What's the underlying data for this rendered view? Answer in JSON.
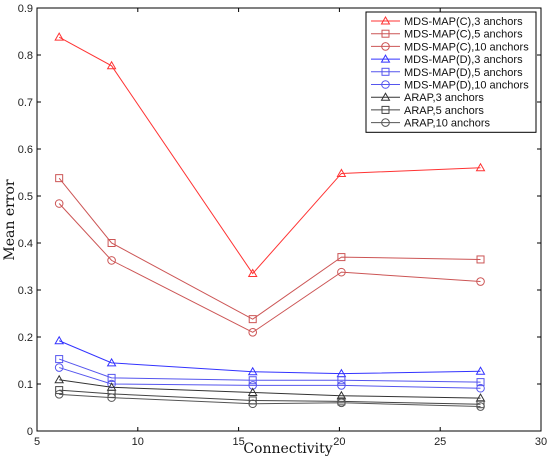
{
  "chart_data": {
    "type": "line",
    "title": "",
    "xlabel": "Connectivity",
    "ylabel": "Mean error",
    "xlim": [
      5,
      30
    ],
    "ylim": [
      0,
      0.9
    ],
    "xticks": [
      5,
      10,
      15,
      20,
      25,
      30
    ],
    "yticks": [
      0,
      0.1,
      0.2,
      0.3,
      0.4,
      0.5,
      0.6,
      0.7,
      0.8,
      0.9
    ],
    "grid": false,
    "legend_position": "top-right",
    "x": [
      6.1,
      8.7,
      15.7,
      20.1,
      27.0
    ],
    "series": [
      {
        "name": "MDS-MAP(C),3 anchors",
        "color": "#ff3333",
        "marker": "triangle",
        "values": [
          0.838,
          0.777,
          0.335,
          0.548,
          0.56
        ]
      },
      {
        "name": "MDS-MAP(C),5 anchors",
        "color": "#cc5555",
        "marker": "square",
        "values": [
          0.538,
          0.4,
          0.238,
          0.37,
          0.365
        ]
      },
      {
        "name": "MDS-MAP(C),10 anchors",
        "color": "#cc5555",
        "marker": "circle",
        "values": [
          0.484,
          0.363,
          0.21,
          0.338,
          0.318
        ]
      },
      {
        "name": "MDS-MAP(D),3 anchors",
        "color": "#3333ff",
        "marker": "triangle",
        "values": [
          0.192,
          0.145,
          0.126,
          0.122,
          0.127
        ]
      },
      {
        "name": "MDS-MAP(D),5 anchors",
        "color": "#5555ee",
        "marker": "square",
        "values": [
          0.153,
          0.113,
          0.108,
          0.108,
          0.104
        ]
      },
      {
        "name": "MDS-MAP(D),10 anchors",
        "color": "#5555ee",
        "marker": "circle",
        "values": [
          0.135,
          0.1,
          0.097,
          0.097,
          0.091
        ]
      },
      {
        "name": "ARAP,3 anchors",
        "color": "#333333",
        "marker": "triangle",
        "values": [
          0.109,
          0.093,
          0.082,
          0.075,
          0.07
        ]
      },
      {
        "name": "ARAP,5 anchors",
        "color": "#444444",
        "marker": "square",
        "values": [
          0.087,
          0.079,
          0.065,
          0.063,
          0.057
        ]
      },
      {
        "name": "ARAP,10 anchors",
        "color": "#555555",
        "marker": "circle",
        "values": [
          0.078,
          0.071,
          0.058,
          0.06,
          0.052
        ]
      }
    ]
  }
}
